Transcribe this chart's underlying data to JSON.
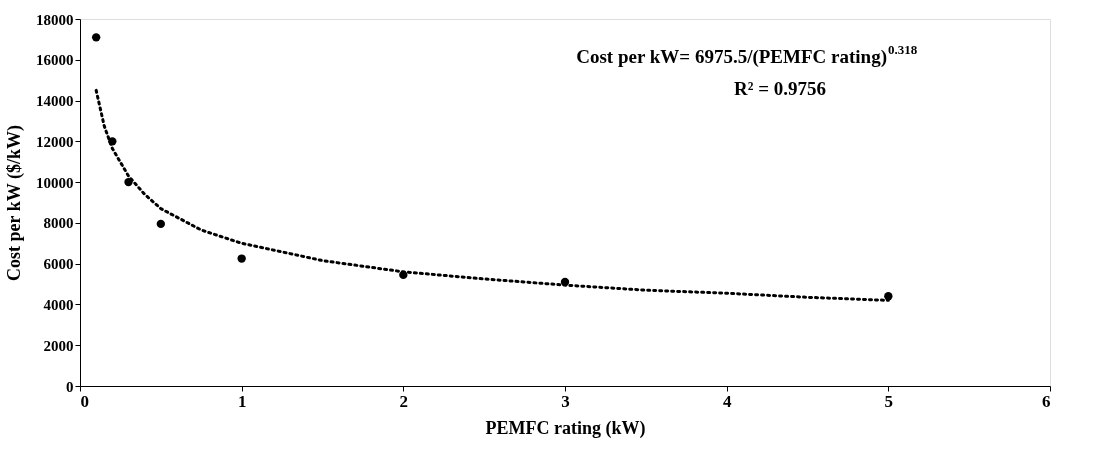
{
  "chart_data": {
    "type": "scatter",
    "xlabel": "PEMFC rating (kW)",
    "ylabel": "Cost per kW ($/kW)",
    "annotations": [
      "Cost per kW= 6975.5/(PEMFC rating)$^{0.318}$",
      "R² = 0.9756"
    ],
    "series": [
      {
        "type": "scatter",
        "color": "#000000",
        "marker": "circle",
        "x": [
          0.1,
          0.2,
          0.3,
          0.5,
          1,
          2,
          3,
          5
        ],
        "values": [
          17100,
          12000,
          10000,
          7950,
          6250,
          5450,
          5100,
          4400
        ]
      },
      {
        "type": "line",
        "color": "#000000",
        "line_style": "dotted",
        "marker": "none",
        "x": [
          0.1,
          0.15,
          0.2,
          0.3,
          0.4,
          0.5,
          0.75,
          1,
          1.5,
          2,
          2.5,
          3,
          3.5,
          4,
          4.5,
          5
        ],
        "values": [
          14500,
          12750,
          11650,
          10300,
          9400,
          8700,
          7650,
          7000,
          6150,
          5600,
          5250,
          4950,
          4700,
          4550,
          4350,
          4200
        ]
      }
    ],
    "xlim": [
      0,
      6
    ],
    "xticks": [
      0,
      1,
      2,
      3,
      4,
      5,
      6
    ],
    "ylim": [
      0,
      18000
    ],
    "yticks": [
      0,
      2000,
      4000,
      6000,
      8000,
      10000,
      12000,
      14000,
      16000,
      18000
    ],
    "grid": false
  }
}
